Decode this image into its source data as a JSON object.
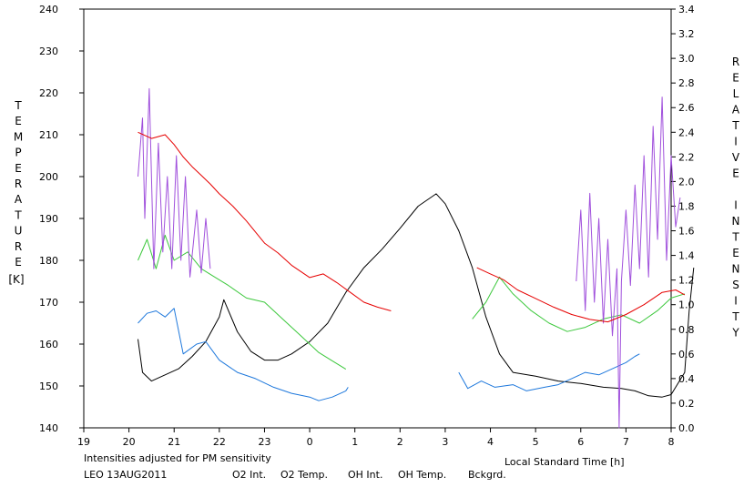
{
  "chart_data": {
    "type": "line",
    "note_text": "Intensities adjusted for PM sensitivity",
    "station_label": "LEO 13AUG2011",
    "xlabel": "Local Standard Time [h]",
    "ylabel_left": "TEMPERATURE",
    "ylabel_left_unit": "[K]",
    "ylabel_right": "RELATIVE INTENSITY",
    "x_tick_labels": [
      "19",
      "20",
      "21",
      "22",
      "23",
      "0",
      "1",
      "2",
      "3",
      "4",
      "5",
      "6",
      "7",
      "8"
    ],
    "y_left_ticks": [
      "140",
      "150",
      "160",
      "170",
      "180",
      "190",
      "200",
      "210",
      "220",
      "230",
      "240"
    ],
    "y_right_ticks": [
      "0.0",
      "0.2",
      "0.4",
      "0.6",
      "0.8",
      "1.0",
      "1.2",
      "1.4",
      "1.6",
      "1.8",
      "2.0",
      "2.2",
      "2.4",
      "2.6",
      "2.8",
      "3.0",
      "3.2",
      "3.4"
    ],
    "xlim": [
      19,
      32
    ],
    "ylim_left": [
      140,
      240
    ],
    "ylim_right": [
      0,
      3.4
    ],
    "grid": false,
    "legend_position": "bottom",
    "colors": {
      "o2_int": "#1e78dc",
      "o2_temp": "#a050dc",
      "oh_int": "#e60000",
      "oh_temp": "#3cc83c",
      "bckgrd": "#000000",
      "note": "#3cc83c"
    },
    "series": [
      {
        "name": "O2 Int.",
        "key": "o2_int",
        "axis": "right",
        "segments": [
          [
            [
              20.2,
              0.85
            ],
            [
              20.4,
              0.93
            ],
            [
              20.6,
              0.95
            ],
            [
              20.8,
              0.9
            ],
            [
              21.0,
              0.97
            ],
            [
              21.2,
              0.6
            ],
            [
              21.5,
              0.68
            ],
            [
              21.7,
              0.7
            ],
            [
              22.0,
              0.55
            ],
            [
              22.4,
              0.45
            ],
            [
              22.8,
              0.4
            ],
            [
              23.2,
              0.33
            ],
            [
              23.6,
              0.28
            ],
            [
              24.0,
              0.25
            ],
            [
              24.2,
              0.22
            ],
            [
              24.5,
              0.25
            ],
            [
              24.8,
              0.3
            ],
            [
              24.85,
              0.33
            ]
          ],
          [
            [
              27.3,
              0.45
            ],
            [
              27.5,
              0.32
            ],
            [
              27.8,
              0.38
            ],
            [
              28.1,
              0.33
            ],
            [
              28.5,
              0.35
            ],
            [
              28.8,
              0.3
            ],
            [
              29.2,
              0.33
            ],
            [
              29.5,
              0.35
            ],
            [
              29.8,
              0.4
            ],
            [
              30.1,
              0.45
            ],
            [
              30.4,
              0.43
            ],
            [
              30.7,
              0.48
            ],
            [
              31.0,
              0.53
            ],
            [
              31.2,
              0.58
            ],
            [
              31.3,
              0.6
            ]
          ]
        ]
      },
      {
        "name": "O2 Temp.",
        "key": "o2_temp",
        "axis": "left",
        "segments": [
          [
            [
              20.2,
              200
            ],
            [
              20.3,
              214
            ],
            [
              20.35,
              190
            ],
            [
              20.45,
              221
            ],
            [
              20.55,
              178
            ],
            [
              20.65,
              208
            ],
            [
              20.75,
              182
            ],
            [
              20.85,
              200
            ],
            [
              20.95,
              178
            ],
            [
              21.05,
              205
            ],
            [
              21.15,
              180
            ],
            [
              21.25,
              200
            ],
            [
              21.35,
              176
            ],
            [
              21.5,
              192
            ],
            [
              21.6,
              177
            ],
            [
              21.7,
              190
            ],
            [
              21.8,
              178
            ]
          ],
          [
            [
              29.9,
              175
            ],
            [
              30.0,
              192
            ],
            [
              30.1,
              168
            ],
            [
              30.2,
              196
            ],
            [
              30.3,
              170
            ],
            [
              30.4,
              190
            ],
            [
              30.5,
              165
            ],
            [
              30.6,
              185
            ],
            [
              30.7,
              162
            ],
            [
              30.8,
              178
            ],
            [
              30.85,
              140
            ],
            [
              30.9,
              175
            ],
            [
              31.0,
              192
            ],
            [
              31.1,
              174
            ],
            [
              31.2,
              198
            ],
            [
              31.3,
              178
            ],
            [
              31.4,
              205
            ],
            [
              31.5,
              176
            ],
            [
              31.6,
              212
            ],
            [
              31.7,
              185
            ],
            [
              31.8,
              219
            ],
            [
              31.9,
              180
            ],
            [
              32.0,
              205
            ],
            [
              32.1,
              188
            ],
            [
              32.2,
              195
            ]
          ]
        ]
      },
      {
        "name": "OH Int.",
        "key": "oh_int",
        "axis": "right",
        "segments": [
          [
            [
              20.2,
              2.4
            ],
            [
              20.5,
              2.35
            ],
            [
              20.8,
              2.38
            ],
            [
              21.0,
              2.3
            ],
            [
              21.2,
              2.2
            ],
            [
              21.4,
              2.12
            ],
            [
              21.6,
              2.05
            ],
            [
              21.8,
              1.98
            ],
            [
              22.0,
              1.9
            ],
            [
              22.3,
              1.8
            ],
            [
              22.6,
              1.68
            ],
            [
              23.0,
              1.5
            ],
            [
              23.3,
              1.42
            ],
            [
              23.6,
              1.32
            ],
            [
              24.0,
              1.22
            ],
            [
              24.3,
              1.25
            ],
            [
              24.6,
              1.18
            ],
            [
              24.9,
              1.1
            ],
            [
              25.2,
              1.02
            ],
            [
              25.5,
              0.98
            ],
            [
              25.8,
              0.95
            ]
          ],
          [
            [
              27.7,
              1.3
            ],
            [
              28.0,
              1.25
            ],
            [
              28.3,
              1.2
            ],
            [
              28.6,
              1.12
            ],
            [
              29.0,
              1.05
            ],
            [
              29.4,
              0.98
            ],
            [
              29.8,
              0.92
            ],
            [
              30.2,
              0.88
            ],
            [
              30.6,
              0.86
            ],
            [
              31.0,
              0.92
            ],
            [
              31.4,
              1.0
            ],
            [
              31.8,
              1.1
            ],
            [
              32.1,
              1.12
            ],
            [
              32.3,
              1.08
            ]
          ]
        ]
      },
      {
        "name": "OH Temp.",
        "key": "oh_temp",
        "axis": "left",
        "segments": [
          [
            [
              20.2,
              180
            ],
            [
              20.4,
              185
            ],
            [
              20.6,
              178
            ],
            [
              20.8,
              186
            ],
            [
              21.0,
              180
            ],
            [
              21.3,
              182
            ],
            [
              21.6,
              178
            ],
            [
              21.9,
              176
            ],
            [
              22.2,
              174
            ],
            [
              22.6,
              171
            ],
            [
              23.0,
              170
            ],
            [
              23.4,
              166
            ],
            [
              23.8,
              162
            ],
            [
              24.2,
              158
            ],
            [
              24.5,
              156
            ],
            [
              24.8,
              154
            ]
          ],
          [
            [
              27.6,
              166
            ],
            [
              27.9,
              170
            ],
            [
              28.2,
              176
            ],
            [
              28.5,
              172
            ],
            [
              28.9,
              168
            ],
            [
              29.3,
              165
            ],
            [
              29.7,
              163
            ],
            [
              30.1,
              164
            ],
            [
              30.5,
              166
            ],
            [
              30.9,
              167
            ],
            [
              31.3,
              165
            ],
            [
              31.7,
              168
            ],
            [
              32.0,
              171
            ],
            [
              32.3,
              172
            ]
          ]
        ]
      },
      {
        "name": "Bckgrd.",
        "key": "bckgrd",
        "axis": "right",
        "segments": [
          [
            [
              20.2,
              0.72
            ],
            [
              20.3,
              0.45
            ],
            [
              20.5,
              0.38
            ],
            [
              20.8,
              0.43
            ],
            [
              21.1,
              0.48
            ],
            [
              21.4,
              0.58
            ],
            [
              21.7,
              0.7
            ],
            [
              22.0,
              0.9
            ],
            [
              22.1,
              1.04
            ],
            [
              22.4,
              0.78
            ],
            [
              22.7,
              0.62
            ],
            [
              23.0,
              0.55
            ],
            [
              23.3,
              0.55
            ],
            [
              23.6,
              0.6
            ],
            [
              24.0,
              0.7
            ],
            [
              24.4,
              0.85
            ],
            [
              24.8,
              1.1
            ],
            [
              25.2,
              1.3
            ],
            [
              25.6,
              1.45
            ],
            [
              26.0,
              1.62
            ],
            [
              26.4,
              1.8
            ],
            [
              26.8,
              1.9
            ],
            [
              27.0,
              1.82
            ],
            [
              27.3,
              1.6
            ],
            [
              27.6,
              1.3
            ],
            [
              27.9,
              0.9
            ],
            [
              28.2,
              0.6
            ],
            [
              28.5,
              0.45
            ],
            [
              29.0,
              0.42
            ],
            [
              29.5,
              0.38
            ],
            [
              30.0,
              0.36
            ],
            [
              30.5,
              0.33
            ],
            [
              30.9,
              0.32
            ],
            [
              31.2,
              0.3
            ],
            [
              31.5,
              0.26
            ],
            [
              31.8,
              0.25
            ],
            [
              32.0,
              0.27
            ],
            [
              32.3,
              0.45
            ],
            [
              32.4,
              0.95
            ],
            [
              32.5,
              1.3
            ]
          ]
        ]
      }
    ]
  }
}
